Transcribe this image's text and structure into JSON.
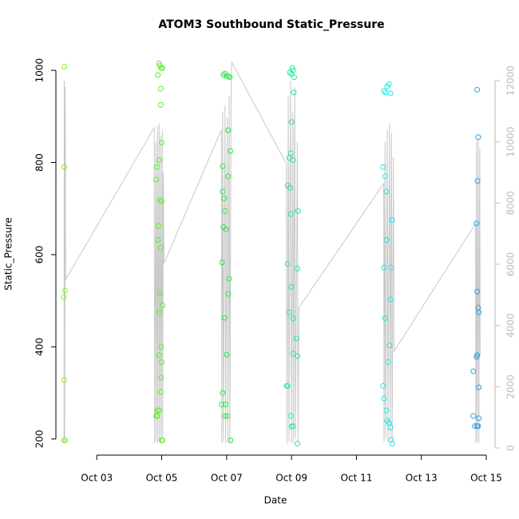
{
  "chart_data": {
    "type": "scatter",
    "title": "ATOM3 Southbound Static_Pressure",
    "x_label": "Date",
    "y_label": "Static_Pressure",
    "xlim": [
      1.74,
      15.27
    ],
    "xticks": [
      {
        "value": 3,
        "label": "Oct 03"
      },
      {
        "value": 5,
        "label": "Oct 05"
      },
      {
        "value": 7,
        "label": "Oct 07"
      },
      {
        "value": 9,
        "label": "Oct 09"
      },
      {
        "value": 11,
        "label": "Oct 11"
      },
      {
        "value": 13,
        "label": "Oct 13"
      },
      {
        "value": 15,
        "label": "Oct 15"
      }
    ],
    "ylim": [
      165,
      1040
    ],
    "yticks": [
      200,
      400,
      600,
      800,
      1000
    ],
    "y2lim": [
      -235,
      12940
    ],
    "y2ticks": [
      0,
      2000,
      4000,
      6000,
      8000,
      10000,
      12000
    ],
    "series": [
      {
        "color": "#8cf029",
        "x": [
          2.0,
          2.0,
          2.02,
          1.98,
          2.0,
          2.0,
          2.02
        ],
        "values": [
          1008,
          790,
          522,
          508,
          328,
          197,
          197
        ]
      },
      {
        "color": "#5cf02a",
        "x": [
          4.92,
          4.95,
          4.98,
          5.02,
          4.88,
          4.97,
          4.97,
          5.0,
          4.93,
          4.85,
          4.83,
          4.95,
          5.0,
          4.9,
          4.88,
          4.97,
          4.95,
          5.03,
          4.93,
          4.98,
          4.92,
          5.0,
          4.98,
          4.97,
          4.93,
          4.87,
          4.83,
          4.87,
          5.0,
          5.02
        ],
        "values": [
          1015,
          1010,
          1005,
          1005,
          990,
          960,
          925,
          843,
          805,
          790,
          763,
          718,
          716,
          662,
          632,
          615,
          517,
          490,
          475,
          400,
          382,
          367,
          333,
          302,
          262,
          262,
          250,
          250,
          197,
          197
        ]
      },
      {
        "color": "#2ee84a",
        "x": [
          6.95,
          6.9,
          7.0,
          7.05,
          7.1,
          7.05,
          7.12,
          6.88,
          7.05,
          6.88,
          6.92,
          6.95,
          6.9,
          6.98,
          6.86,
          7.08,
          7.05,
          6.93,
          7.0,
          6.88,
          6.85,
          6.97,
          6.95,
          7.02,
          7.12
        ],
        "values": [
          993,
          990,
          988,
          987,
          985,
          870,
          825,
          792,
          770,
          737,
          722,
          695,
          660,
          655,
          583,
          548,
          515,
          463,
          383,
          300,
          275,
          275,
          250,
          250,
          197
        ]
      },
      {
        "color": "#26e89a",
        "x": [
          9.02,
          9.05,
          8.95,
          9.0,
          9.08,
          9.07,
          9.0,
          8.98,
          8.93,
          9.05,
          8.88,
          8.95,
          9.2,
          8.98,
          8.88,
          9.18,
          9.0,
          8.93,
          9.05,
          9.15,
          9.05,
          9.18,
          8.88,
          8.85,
          8.98,
          9.05,
          9.0,
          9.18
        ],
        "values": [
          1005,
          1000,
          995,
          992,
          985,
          952,
          888,
          820,
          810,
          805,
          750,
          745,
          695,
          688,
          580,
          570,
          530,
          475,
          462,
          418,
          385,
          380,
          315,
          315,
          250,
          228,
          227,
          190
        ]
      },
      {
        "color": "#22e6e6",
        "x": [
          12.0,
          11.95,
          11.85,
          11.9,
          12.05,
          11.82,
          11.88,
          11.92,
          12.1,
          11.92,
          11.85,
          12.07,
          12.05,
          11.88,
          12.02,
          11.98,
          11.82,
          11.85,
          11.92,
          11.95,
          12.0,
          12.05,
          12.07,
          12.1
        ],
        "values": [
          970,
          965,
          955,
          952,
          950,
          790,
          770,
          737,
          675,
          632,
          572,
          572,
          503,
          462,
          403,
          367,
          315,
          288,
          262,
          240,
          235,
          225,
          198,
          190
        ]
      },
      {
        "color": "#2aa0e6",
        "x": [
          14.72,
          14.75,
          14.73,
          14.7,
          14.72,
          14.75,
          14.77,
          14.72,
          14.7,
          14.6,
          14.77,
          14.6,
          14.77,
          14.65,
          14.72,
          14.75
        ],
        "values": [
          958,
          855,
          760,
          668,
          520,
          485,
          475,
          382,
          378,
          347,
          312,
          250,
          245,
          228,
          228,
          228
        ]
      },
      {
        "type": "line",
        "axis": "y2",
        "color": "#c8c8c8",
        "x": [
          1.99,
          2.0,
          2.01,
          2.03,
          2.04,
          4.77,
          4.78,
          4.82,
          4.83,
          4.87,
          4.88,
          4.92,
          4.93,
          4.97,
          4.98,
          5.02,
          5.03,
          5.05,
          5.07,
          6.84,
          6.85,
          6.88,
          6.9,
          6.95,
          6.97,
          7.02,
          7.04,
          7.08,
          7.1,
          7.14,
          7.16,
          8.84,
          8.86,
          8.9,
          8.92,
          8.97,
          9.0,
          9.04,
          9.06,
          9.1,
          9.12,
          9.18,
          9.2,
          9.23,
          11.84,
          11.85,
          11.88,
          11.9,
          11.95,
          11.97,
          12.02,
          12.04,
          12.08,
          12.1,
          12.14,
          12.16,
          14.67,
          14.68,
          14.7,
          14.72,
          14.75,
          14.77,
          14.8,
          14.81
        ],
        "values": [
          150,
          12000,
          200,
          11800,
          5500,
          10460,
          150,
          10000,
          200,
          10500,
          150,
          10600,
          200,
          10200,
          150,
          10400,
          300,
          9000,
          6030,
          10400,
          150,
          11000,
          200,
          11200,
          150,
          10800,
          200,
          11500,
          150,
          12000,
          12600,
          9290,
          150,
          11500,
          200,
          12000,
          150,
          11000,
          200,
          11800,
          300,
          10000,
          200,
          4590,
          8640,
          200,
          10000,
          300,
          10400,
          200,
          10600,
          300,
          10300,
          200,
          9500,
          3160,
          7330,
          150,
          10000,
          200,
          10070,
          150,
          9800,
          3000
        ]
      }
    ]
  }
}
